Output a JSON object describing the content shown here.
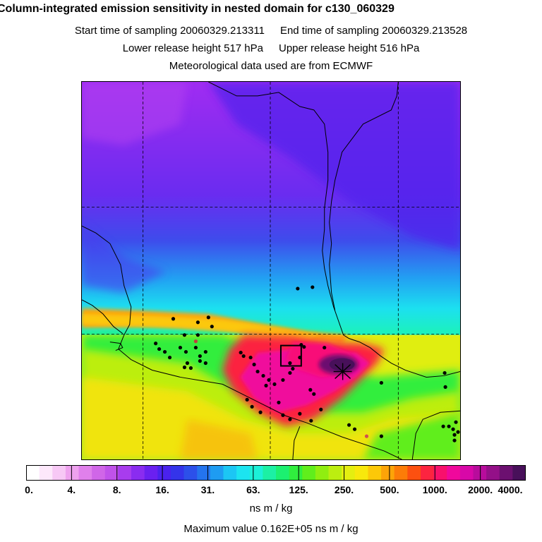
{
  "header": {
    "title": "Column-integrated emission sensitivity in nested domain for c130_060329",
    "start_time": "Start time of sampling 20060329.213311",
    "end_time": "End time of sampling 20060329.213528",
    "lower_release": "Lower release height  517 hPa",
    "upper_release": "Upper release height  516 hPa",
    "met_data": "Meteorological data used are from ECMWF"
  },
  "colorbar": {
    "colors": [
      "#ffffff",
      "#fde8fb",
      "#f7c8f5",
      "#eea2ee",
      "#e080eb",
      "#d066e8",
      "#c052ea",
      "#a83cee",
      "#8a2cf0",
      "#6a20f0",
      "#4a22ee",
      "#3434ea",
      "#2c50ea",
      "#2474ee",
      "#1e9cf2",
      "#1cc6f4",
      "#1ce4f0",
      "#1cf0d8",
      "#1cf0a4",
      "#1cf070",
      "#30ee3e",
      "#60ee1c",
      "#90ee10",
      "#bcee10",
      "#e4ee10",
      "#f8e80c",
      "#fcc808",
      "#fca408",
      "#fc7c08",
      "#fc5010",
      "#fc2440",
      "#f8106c",
      "#f0089c",
      "#d808a8",
      "#b80c9c",
      "#941088",
      "#6c1070",
      "#48105a"
    ],
    "ticks": [
      "0.",
      "4.",
      "8.",
      "16.",
      "31.",
      "63.",
      "125.",
      "250.",
      "500.",
      "1000.",
      "2000.",
      "4000."
    ],
    "units": "ns m / kg"
  },
  "max_value": "Maximum value  0.162E+05 ns m / kg"
}
